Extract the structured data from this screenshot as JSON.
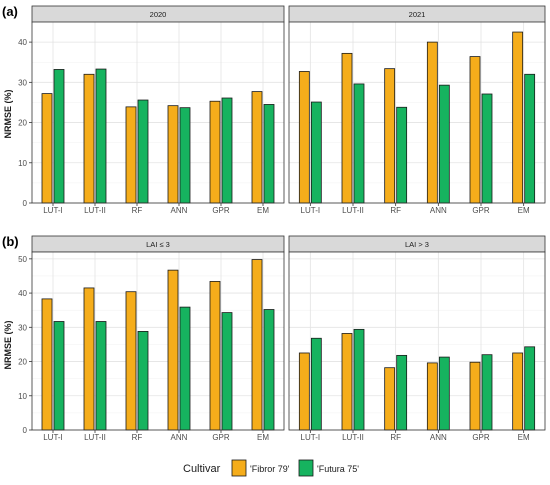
{
  "chart_data": [
    {
      "type": "bar",
      "tag": "(a)",
      "ylabel": "NRMSE (%)",
      "ylim": [
        0,
        45
      ],
      "yticks": [
        0,
        10,
        20,
        30,
        40
      ],
      "grid": true,
      "categories": [
        "LUT-I",
        "LUT-II",
        "RF",
        "ANN",
        "GPR",
        "EM"
      ],
      "panels": [
        {
          "title": "2020",
          "series": [
            {
              "name": "'Fibror 79'",
              "values": [
                27.2,
                32.0,
                23.9,
                24.2,
                25.3,
                27.7
              ]
            },
            {
              "name": "'Futura 75'",
              "values": [
                33.2,
                33.3,
                25.6,
                23.7,
                26.1,
                24.5
              ]
            }
          ]
        },
        {
          "title": "2021",
          "series": [
            {
              "name": "'Fibror 79'",
              "values": [
                32.7,
                37.2,
                33.4,
                40.0,
                36.4,
                42.5
              ]
            },
            {
              "name": "'Futura 75'",
              "values": [
                25.1,
                29.6,
                23.8,
                29.3,
                27.1,
                32.0
              ]
            }
          ]
        }
      ]
    },
    {
      "type": "bar",
      "tag": "(b)",
      "ylabel": "NRMSE (%)",
      "ylim": [
        0,
        52
      ],
      "yticks": [
        0,
        10,
        20,
        30,
        40,
        50
      ],
      "grid": true,
      "categories": [
        "LUT-I",
        "LUT-II",
        "RF",
        "ANN",
        "GPR",
        "EM"
      ],
      "panels": [
        {
          "title": "LAI ≤ 3",
          "series": [
            {
              "name": "'Fibror 79'",
              "values": [
                38.3,
                41.5,
                40.4,
                46.7,
                43.4,
                49.8
              ]
            },
            {
              "name": "'Futura 75'",
              "values": [
                31.7,
                31.7,
                28.8,
                35.9,
                34.3,
                35.2
              ]
            }
          ]
        },
        {
          "title": "LAI > 3",
          "series": [
            {
              "name": "'Fibror 79'",
              "values": [
                22.5,
                28.2,
                18.2,
                19.6,
                19.8,
                22.5
              ]
            },
            {
              "name": "'Futura 75'",
              "values": [
                26.8,
                29.4,
                21.8,
                21.3,
                22.0,
                24.3
              ]
            }
          ]
        }
      ]
    }
  ],
  "legend": {
    "title": "Cultivar",
    "position": "bottom",
    "items": [
      {
        "label": "'Fibror 79'",
        "color": "#F5AD1B"
      },
      {
        "label": "'Futura 75'",
        "color": "#16B35F"
      }
    ]
  }
}
